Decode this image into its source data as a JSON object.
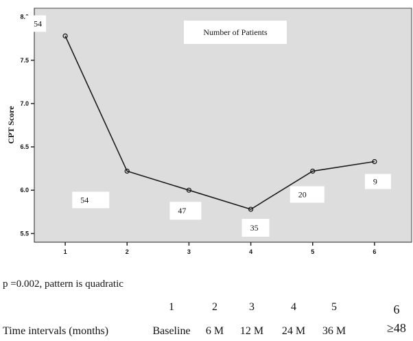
{
  "chart_data": {
    "type": "line",
    "ylabel": "CPT Score",
    "xlabel": "",
    "x": [
      1,
      2,
      3,
      4,
      5,
      6
    ],
    "x_ticks": [
      "1",
      "2",
      "3",
      "4",
      "5",
      "6"
    ],
    "y_ticks": [
      "8.0",
      "7.5",
      "7.0",
      "6.5",
      "6.0",
      "5.5"
    ],
    "ylim": [
      5.4,
      8.1
    ],
    "xlim": [
      0.5,
      6.6
    ],
    "series": [
      {
        "values": [
          7.78,
          6.22,
          6.0,
          5.78,
          6.22,
          6.33
        ]
      }
    ],
    "data_labels": [
      "54",
      "54",
      "47",
      "35",
      "20",
      "9"
    ],
    "legend_box_text": "Number of Patients",
    "grid": false,
    "colors": {
      "plot_background": "#dddddd",
      "line": "#1a1a1a"
    }
  },
  "caption": "p =0.002, pattern is quadratic",
  "interval_table": {
    "index_row": [
      "1",
      "2",
      "3",
      "4",
      "5",
      "6"
    ],
    "row_label": "Time intervals (months)",
    "interval_row": [
      "Baseline",
      "6 M",
      "12 M",
      "24 M",
      "36 M",
      "≥48"
    ]
  }
}
